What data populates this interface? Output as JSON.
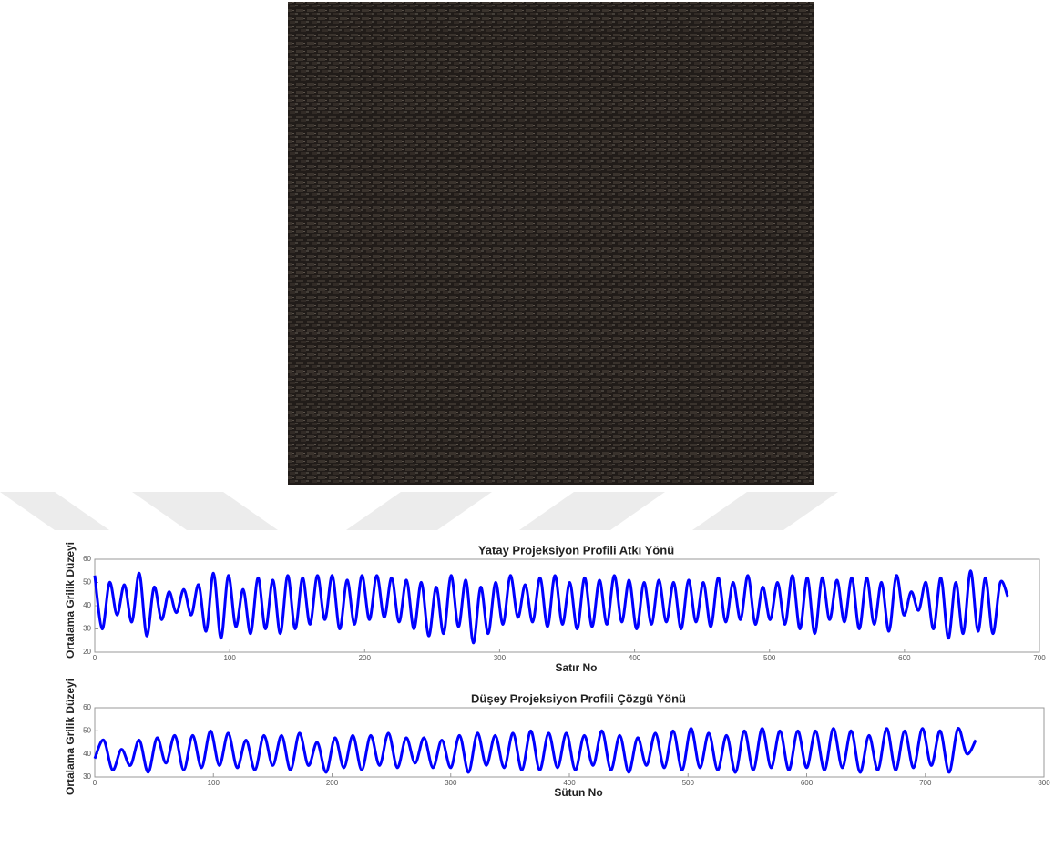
{
  "chart_data": [
    {
      "type": "line",
      "title": "Yatay Projeksiyon Profili Atkı Yönü",
      "xlabel": "Satır No",
      "ylabel": "Ortalama Grilik Düzeyi",
      "x": [
        0,
        5.5,
        11,
        16.5,
        22,
        27.5,
        33,
        38.5,
        44,
        49.5,
        55,
        60.5,
        66,
        71.5,
        77,
        82.5,
        88,
        93.5,
        99,
        104.5,
        110,
        115.5,
        121,
        126.5,
        132,
        137.5,
        143,
        148.5,
        154,
        159.5,
        165,
        170.5,
        176,
        181.5,
        187,
        192.5,
        198,
        203.5,
        209,
        214.5,
        220,
        225.5,
        231,
        236.5,
        242,
        247.5,
        253,
        258.5,
        264,
        269.5,
        275,
        280.5,
        286,
        291.5,
        297,
        302.5,
        308,
        313.5,
        319,
        324.5,
        330,
        335.5,
        341,
        346.5,
        352,
        357.5,
        363,
        368.5,
        374,
        379.5,
        385,
        390.5,
        396,
        401.5,
        407,
        412.5,
        418,
        423.5,
        429,
        434.5,
        440,
        445.5,
        451,
        456.5,
        462,
        467.5,
        473,
        478.5,
        484,
        489.5,
        495,
        500.5,
        506,
        511.5,
        517,
        522.5,
        528,
        533.5,
        539,
        544.5,
        550,
        555.5,
        561,
        566.5,
        572,
        577.5,
        583,
        588.5,
        594,
        599.5,
        605,
        610.5,
        616,
        621.5,
        627,
        632.5,
        638,
        643.5,
        649,
        654.5,
        660,
        665.5,
        671,
        676.5
      ],
      "series": [
        {
          "color": "#0000ff",
          "values": [
            53,
            30,
            50,
            36,
            49,
            33,
            54,
            27,
            48,
            34,
            46,
            37,
            47,
            36,
            49,
            29,
            54,
            26,
            53,
            31,
            47,
            28,
            52,
            30,
            51,
            28,
            53,
            30,
            52,
            32,
            53,
            34,
            53,
            30,
            51,
            32,
            53,
            34,
            53,
            35,
            52,
            33,
            51,
            30,
            50,
            27,
            48,
            28,
            53,
            31,
            51,
            24,
            48,
            28,
            50,
            32,
            53,
            35,
            49,
            33,
            52,
            31,
            53,
            32,
            50,
            30,
            52,
            31,
            51,
            32,
            53,
            33,
            51,
            30,
            50,
            32,
            51,
            33,
            50,
            30,
            51,
            33,
            50,
            31,
            52,
            33,
            50,
            34,
            53,
            32,
            48,
            34,
            50,
            32,
            53,
            30,
            52,
            28,
            52,
            34,
            51,
            33,
            52,
            30,
            52,
            32,
            50,
            29,
            53,
            36,
            46,
            38,
            50,
            30,
            52,
            26,
            50,
            28,
            55,
            29,
            52,
            28,
            50,
            44
          ]
        }
      ],
      "xlim": [
        0,
        700
      ],
      "xticks": [
        0,
        100,
        200,
        300,
        400,
        500,
        600,
        700
      ],
      "ylim": [
        20,
        60
      ],
      "yticks": [
        20,
        30,
        40,
        50,
        60
      ]
    },
    {
      "type": "line",
      "title": "Düşey Projeksiyon Profili Çözgü Yönü",
      "xlabel": "Sütun No",
      "ylabel": "Ortalama Grilik Düzeyi",
      "x": [
        0,
        7.5,
        15,
        22.5,
        30,
        37.5,
        45,
        52.5,
        60,
        67.5,
        75,
        82.5,
        90,
        97.5,
        105,
        112.5,
        120,
        127.5,
        135,
        142.5,
        150,
        157.5,
        165,
        172.5,
        180,
        187.5,
        195,
        202.5,
        210,
        217.5,
        225,
        232.5,
        240,
        247.5,
        255,
        262.5,
        270,
        277.5,
        285,
        292.5,
        300,
        307.5,
        315,
        322.5,
        330,
        337.5,
        345,
        352.5,
        360,
        367.5,
        375,
        382.5,
        390,
        397.5,
        405,
        412.5,
        420,
        427.5,
        435,
        442.5,
        450,
        457.5,
        465,
        472.5,
        480,
        487.5,
        495,
        502.5,
        510,
        517.5,
        525,
        532.5,
        540,
        547.5,
        555,
        562.5,
        570,
        577.5,
        585,
        592.5,
        600,
        607.5,
        615,
        622.5,
        630,
        637.5,
        645,
        652.5,
        660,
        667.5,
        675,
        682.5,
        690,
        697.5,
        705,
        712.5,
        720,
        727.5,
        735,
        742.5
      ],
      "series": [
        {
          "color": "#0000ff",
          "values": [
            38,
            46,
            33,
            42,
            35,
            46,
            32,
            47,
            36,
            48,
            33,
            48,
            34,
            50,
            35,
            49,
            34,
            46,
            33,
            48,
            35,
            48,
            33,
            49,
            35,
            45,
            32,
            47,
            34,
            48,
            33,
            48,
            35,
            49,
            34,
            47,
            36,
            47,
            34,
            46,
            34,
            48,
            32,
            49,
            35,
            48,
            34,
            49,
            33,
            50,
            33,
            49,
            34,
            49,
            33,
            48,
            35,
            50,
            33,
            48,
            32,
            47,
            35,
            49,
            34,
            50,
            33,
            51,
            34,
            49,
            33,
            48,
            32,
            50,
            33,
            51,
            34,
            50,
            33,
            50,
            34,
            50,
            33,
            51,
            34,
            50,
            32,
            48,
            33,
            51,
            33,
            50,
            34,
            51,
            35,
            50,
            32,
            51,
            40,
            46
          ]
        }
      ],
      "xlim": [
        0,
        800
      ],
      "xticks": [
        0,
        100,
        200,
        300,
        400,
        500,
        600,
        700,
        800
      ],
      "ylim": [
        30,
        60
      ],
      "yticks": [
        30,
        40,
        50,
        60
      ]
    }
  ]
}
